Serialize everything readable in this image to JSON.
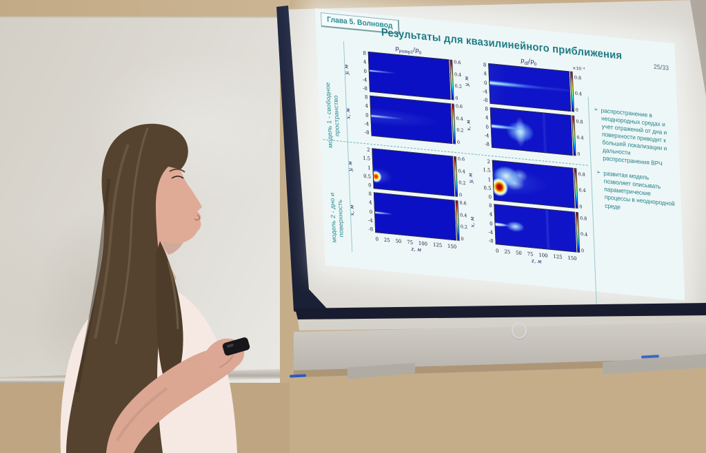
{
  "palette": {
    "wall": "#c6ad8a",
    "whiteboard": "#dcd8d0",
    "screen_surface": "#e9e7e2",
    "screen_border": "#1d2336",
    "slide_background": "#eef7f7",
    "slide_teal": "#1f7f8a",
    "plot_blue": "#0c10c4",
    "hotspot_red": "#c41200",
    "hair": "#55432f",
    "skin": "#dfab97",
    "blouse": "#f6e9e3",
    "remote": "#17171a"
  },
  "slide": {
    "chapter_badge": "Глава 5. Волновод",
    "title": "Результаты для квазилинейного приближения",
    "page_number": "25/33",
    "model_labels": [
      "модель 1 - свободное\nпространство",
      "модель 2 - дно и\nповерхность"
    ],
    "bullet_arrow": "➢",
    "bullets": [
      "распространение в неоднородных средах и учет отражений от дна и поверхности приводит к большей локализации и дальности распространения ВРЧ",
      "развитая модель позволяет описывать параметрические процессы в неоднородной среде"
    ],
    "plots": {
      "x_label": "z, м",
      "x_ticks": [
        "0",
        "25",
        "50",
        "75",
        "100",
        "125",
        "150"
      ],
      "columns": [
        {
          "header_num": "p",
          "header_num_sub": "pump1",
          "header_slash": "/",
          "header_den": "p",
          "header_den_sub": "0",
          "rows": [
            {
              "y_label": "y, м",
              "y_ticks": [
                "8",
                "4",
                "0",
                "-4",
                "-8"
              ],
              "cbar_ticks": [
                "0.6",
                "0.4",
                "0.2",
                "0"
              ]
            },
            {
              "y_label": "x, м",
              "y_ticks": [
                "8",
                "4",
                "0",
                "-4",
                "-8"
              ],
              "cbar_ticks": [
                "0.6",
                "0.4",
                "0.2",
                "0"
              ]
            },
            {
              "y_label": "y, м",
              "y_ticks": [
                "2",
                "1.5",
                "1",
                "0.5",
                "0"
              ],
              "cbar_ticks": [
                "0.6",
                "0.4",
                "0.2",
                "0"
              ]
            },
            {
              "y_label": "x, м",
              "y_ticks": [
                "8",
                "4",
                "0",
                "-4",
                "-8"
              ],
              "cbar_ticks": [
                "0.6",
                "0.4",
                "0.2",
                "0"
              ]
            }
          ]
        },
        {
          "header_num": "p",
          "header_num_sub": "df",
          "header_slash": "/",
          "header_den": "p",
          "header_den_sub": "0",
          "scale_note": "×10⁻⁴",
          "rows": [
            {
              "y_label": "y, м",
              "y_ticks": [
                "8",
                "4",
                "0",
                "-4",
                "-8"
              ],
              "cbar_ticks": [
                "0.8",
                "0.4",
                "0"
              ]
            },
            {
              "y_label": "x, м",
              "y_ticks": [
                "8",
                "4",
                "0",
                "-4",
                "-8"
              ],
              "cbar_ticks": [
                "0.8",
                "0.4",
                "0"
              ]
            },
            {
              "y_label": "y, м",
              "y_ticks": [
                "2",
                "1.5",
                "1",
                "0.5",
                "0"
              ],
              "cbar_ticks": [
                "0.8",
                "0.4",
                "0"
              ]
            },
            {
              "y_label": "x, м",
              "y_ticks": [
                "8",
                "4",
                "0",
                "-4",
                "-8"
              ],
              "cbar_ticks": [
                "0.8",
                "0.4",
                "0"
              ]
            }
          ]
        }
      ]
    }
  }
}
